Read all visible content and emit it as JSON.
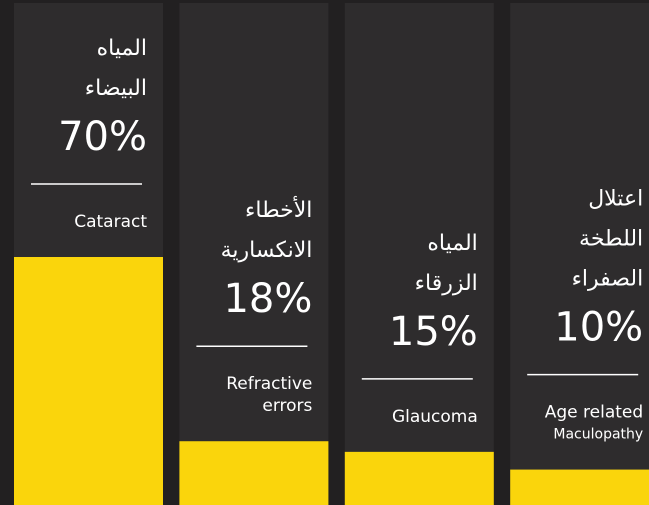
{
  "chart_data": {
    "type": "bar",
    "categories": [
      [
        "Cataract"
      ],
      [
        "Refractive",
        "errors"
      ],
      [
        "Glaucoma"
      ],
      [
        "Age related",
        "Maculopathy"
      ]
    ],
    "arabic_labels": [
      [
        "المياه",
        "البيضاء"
      ],
      [
        "الأخطاء",
        "الانكسارية"
      ],
      [
        "المياه",
        "الزرقاء"
      ],
      [
        "اعتلال",
        "اللطخة",
        "الصفراء"
      ]
    ],
    "values": [
      70,
      18,
      15,
      10
    ],
    "value_labels": [
      "70%",
      "18%",
      "15%",
      "10%"
    ],
    "color": "#fad50c"
  }
}
